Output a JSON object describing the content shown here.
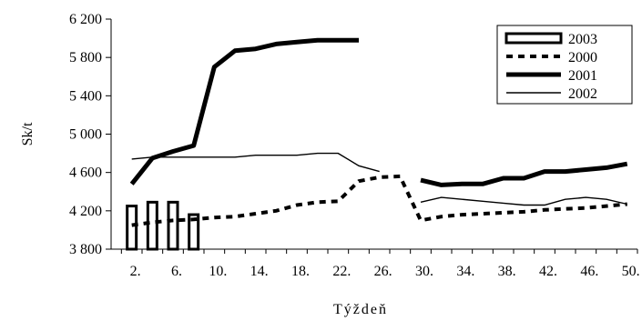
{
  "chart_data": {
    "type": "line",
    "title": "",
    "xlabel": "Týždeň",
    "ylabel": "Sk/t",
    "ylim": [
      3800,
      6200
    ],
    "yticks": [
      3800,
      4200,
      4600,
      5000,
      5400,
      5800,
      6200
    ],
    "ytick_labels": [
      "3 800",
      "4 200",
      "4 600",
      "5 000",
      "5 400",
      "5 800",
      "6 200"
    ],
    "xlim": [
      0,
      51
    ],
    "xticks": [
      2,
      6,
      10,
      14,
      18,
      22,
      26,
      30,
      34,
      38,
      42,
      46,
      50
    ],
    "xtick_labels": [
      "2.",
      "6.",
      "10.",
      "14.",
      "18.",
      "22.",
      "26.",
      "30.",
      "34.",
      "38.",
      "42.",
      "46.",
      "50."
    ],
    "grid": false,
    "legend_position": "top-right",
    "series": [
      {
        "name": "2003",
        "style": "bar",
        "x": [
          2,
          4,
          6,
          8
        ],
        "values": [
          4250,
          4290,
          4290,
          4160
        ]
      },
      {
        "name": "2000",
        "style": "dashed",
        "x": [
          2,
          4,
          6,
          8,
          10,
          12,
          14,
          16,
          18,
          20,
          22,
          24,
          26,
          28,
          30,
          32,
          34,
          36,
          38,
          40,
          42,
          44,
          46,
          48,
          50
        ],
        "values": [
          4050,
          4080,
          4100,
          4110,
          4130,
          4140,
          4170,
          4200,
          4260,
          4290,
          4300,
          4510,
          4550,
          4560,
          4100,
          4140,
          4160,
          4170,
          4180,
          4190,
          4210,
          4220,
          4230,
          4250,
          4270
        ]
      },
      {
        "name": "2001",
        "style": "thick",
        "x": [
          2,
          4,
          6,
          8,
          10,
          12,
          14,
          16,
          18,
          20,
          22,
          24,
          null,
          30,
          32,
          34,
          36,
          38,
          40,
          42,
          44,
          46,
          48,
          50
        ],
        "values": [
          4480,
          4750,
          4820,
          4880,
          5700,
          5870,
          5890,
          5940,
          5960,
          5980,
          5980,
          5980,
          null,
          4520,
          4470,
          4480,
          4480,
          4540,
          4540,
          4610,
          4610,
          4630,
          4650,
          4690
        ]
      },
      {
        "name": "2002",
        "style": "thin",
        "x": [
          2,
          4,
          6,
          8,
          10,
          12,
          14,
          16,
          18,
          20,
          22,
          24,
          26,
          null,
          30,
          32,
          34,
          36,
          38,
          40,
          42,
          44,
          46,
          48,
          50
        ],
        "values": [
          4740,
          4760,
          4760,
          4760,
          4760,
          4760,
          4780,
          4780,
          4780,
          4800,
          4800,
          4670,
          4610,
          null,
          4290,
          4340,
          4320,
          4300,
          4280,
          4260,
          4260,
          4320,
          4340,
          4320,
          4270
        ]
      }
    ]
  }
}
